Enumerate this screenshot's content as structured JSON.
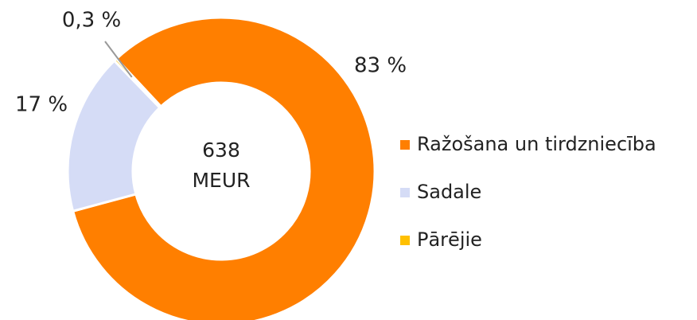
{
  "chart_data": {
    "type": "donut",
    "categories": [
      "Ražošana un tirdzniecība",
      "Sadale",
      "Pārējie"
    ],
    "values": [
      83,
      17,
      0.3
    ],
    "value_labels": [
      "83 %",
      "17 %",
      "0,3 %"
    ],
    "colors": [
      "#ff7f00",
      "#d5dcf6",
      "#ffc000"
    ],
    "center_value": 638,
    "center_unit": "MEUR",
    "legend": "right"
  }
}
